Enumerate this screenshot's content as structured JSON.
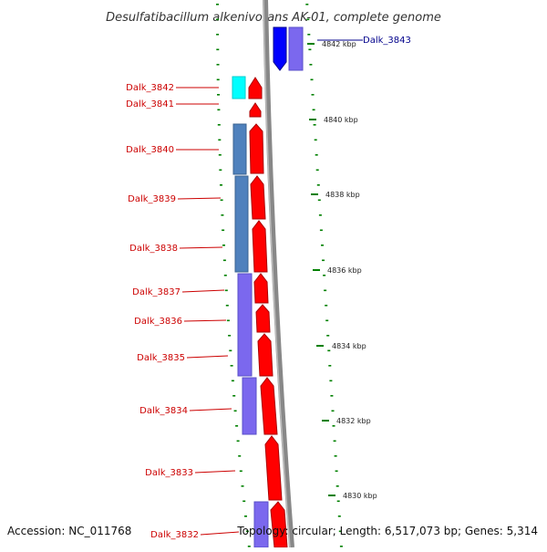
{
  "title": "Desulfatibacillum alkenivorans AK-01, complete genome",
  "accession": "Accession: NC_011768",
  "topology_info": "Topology: circular; Length: 6,517,073 bp; Genes: 5,314",
  "colors": {
    "forward_cds": "#ff0000",
    "reverse_cds": "#0000ff",
    "label_forward": "#cc0000",
    "label_reverse": "#00008b",
    "cog_cyan": "#00ffff",
    "cog_steelblue": "#4f81bd",
    "cog_slateblue": "#7b68ee",
    "backbone": "#888888",
    "tick": "#008000"
  },
  "genes_left": [
    {
      "id": "g3842",
      "label": "Dalk_3842"
    },
    {
      "id": "g3841",
      "label": "Dalk_3841"
    },
    {
      "id": "g3840",
      "label": "Dalk_3840"
    },
    {
      "id": "g3839",
      "label": "Dalk_3839"
    },
    {
      "id": "g3838",
      "label": "Dalk_3838"
    },
    {
      "id": "g3837",
      "label": "Dalk_3837"
    },
    {
      "id": "g3836",
      "label": "Dalk_3836"
    },
    {
      "id": "g3835",
      "label": "Dalk_3835"
    },
    {
      "id": "g3834",
      "label": "Dalk_3834"
    },
    {
      "id": "g3833",
      "label": "Dalk_3833"
    },
    {
      "id": "g3832",
      "label": "Dalk_3832"
    }
  ],
  "genes_right": [
    {
      "id": "g3843",
      "label": "Dalk_3843"
    }
  ],
  "kbp_ticks": [
    "4842 kbp",
    "4840 kbp",
    "4838 kbp",
    "4836 kbp",
    "4834 kbp",
    "4832 kbp",
    "4830 kbp"
  ]
}
